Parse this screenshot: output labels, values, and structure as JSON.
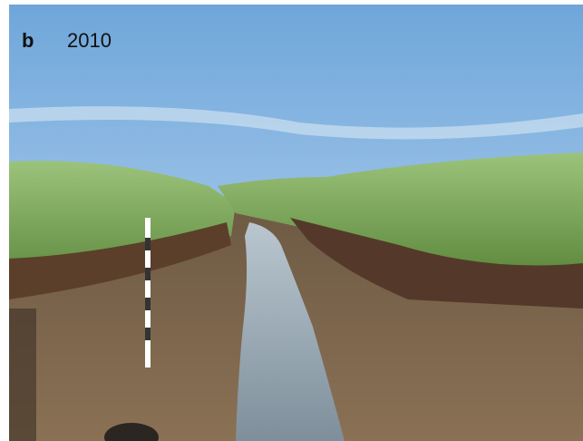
{
  "panel": {
    "label": "b",
    "year": "2010"
  }
}
